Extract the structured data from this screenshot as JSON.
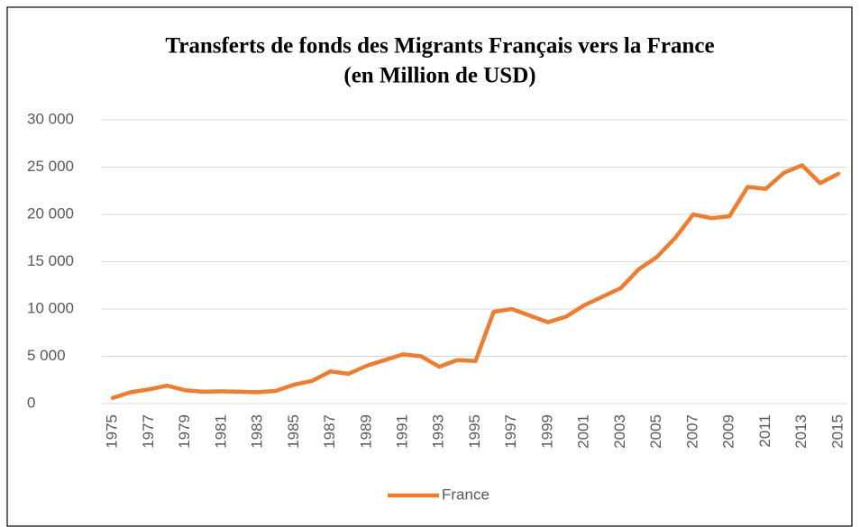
{
  "chart_data": {
    "type": "line",
    "title": [
      "Transferts de fonds des Migrants Français vers la France",
      "(en Million de USD)"
    ],
    "categories": [
      "1975",
      null,
      "1977",
      null,
      "1979",
      null,
      "1981",
      null,
      "1983",
      null,
      "1985",
      null,
      "1987",
      null,
      "1989",
      null,
      "1991",
      null,
      "1993",
      null,
      "1995",
      null,
      "1997",
      null,
      "1999",
      null,
      "2001",
      null,
      "2003",
      null,
      "2005",
      null,
      "2007",
      null,
      "2009",
      null,
      "2011",
      null,
      "2013",
      null,
      "2015"
    ],
    "series": [
      {
        "name": "France",
        "color": "#ed7d31",
        "values": [
          600,
          1200,
          1500,
          1900,
          1400,
          1250,
          1300,
          1250,
          1200,
          1350,
          2000,
          2400,
          3400,
          3150,
          4000,
          4600,
          5200,
          5000,
          3900,
          4600,
          4500,
          9700,
          10000,
          9300,
          8600,
          9200,
          10400,
          11300,
          12200,
          14200,
          15500,
          17500,
          20000,
          19600,
          19800,
          22900,
          22700,
          24400,
          25200,
          23300,
          24300
        ]
      }
    ],
    "ylim": [
      0,
      30000
    ],
    "yticks": [
      {
        "value": 0,
        "label": "0"
      },
      {
        "value": 5000,
        "label": "5 000"
      },
      {
        "value": 10000,
        "label": "10 000"
      },
      {
        "value": 15000,
        "label": "15 000"
      },
      {
        "value": 20000,
        "label": "20 000"
      },
      {
        "value": 25000,
        "label": "25 000"
      },
      {
        "value": 30000,
        "label": "30 000"
      }
    ],
    "grid": true,
    "legend": "bottom"
  }
}
